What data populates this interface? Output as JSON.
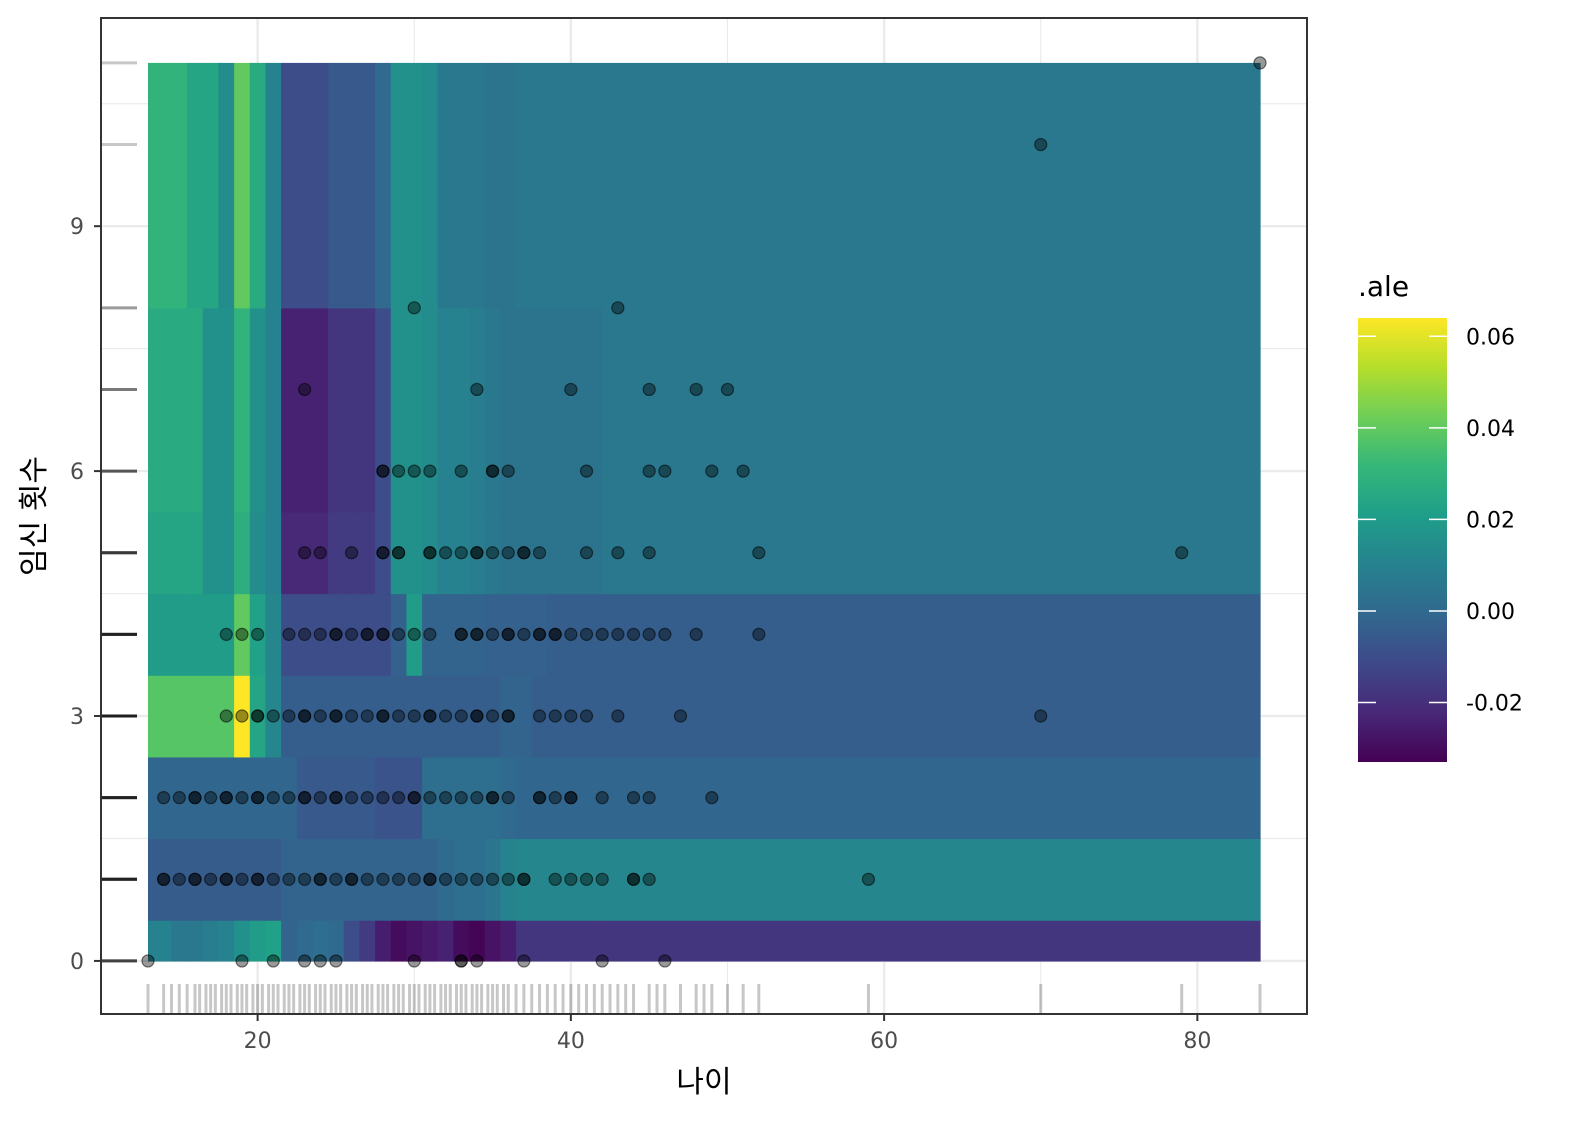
{
  "chart_data": {
    "type": "heatmap",
    "title": "",
    "xlabel": "나이",
    "ylabel": "임신 횟수",
    "xlim": [
      10,
      87
    ],
    "ylim": [
      -0.65,
      11.55
    ],
    "x_ticks": [
      20,
      40,
      60,
      80
    ],
    "x_tick_labels": [
      "20",
      "40",
      "60",
      "80"
    ],
    "y_ticks": [
      0,
      3,
      6,
      9
    ],
    "y_tick_labels": [
      "0",
      "3",
      "6",
      "9"
    ],
    "grid": true,
    "legend": {
      "title": ".ale",
      "position": "right",
      "colorscale": "viridis",
      "min": -0.033,
      "max": 0.064,
      "ticks": [
        0.06,
        0.04,
        0.02,
        0.0,
        -0.02
      ],
      "tick_labels": [
        "0.06",
        "0.04",
        "0.02",
        "0.00",
        "-0.02"
      ]
    },
    "x_edges": [
      13,
      14.5,
      15.5,
      16.5,
      17.5,
      18.5,
      19.5,
      20.5,
      21.5,
      22.5,
      23.5,
      24.5,
      25.5,
      26.5,
      27.5,
      28.5,
      29.5,
      30.5,
      31.5,
      32.5,
      33.5,
      34.5,
      35.5,
      36.5,
      37.5,
      38.5,
      42,
      64,
      84
    ],
    "y_edges": [
      0,
      0.5,
      1.5,
      2.5,
      3.5,
      4.5,
      5.5,
      8,
      11
    ],
    "ale_values": [
      [
        0.01,
        0.006,
        0.006,
        0.008,
        0.01,
        0.016,
        0.02,
        0.022,
        -0.002,
        0.0,
        0.002,
        0.0,
        -0.01,
        -0.016,
        -0.025,
        -0.03,
        -0.028,
        -0.026,
        -0.024,
        -0.03,
        -0.032,
        -0.028,
        -0.025,
        -0.018,
        -0.018,
        -0.018,
        -0.018,
        -0.018,
        -0.03
      ],
      [
        -0.005,
        -0.005,
        -0.005,
        -0.005,
        -0.005,
        -0.005,
        -0.005,
        -0.005,
        -0.002,
        -0.002,
        -0.002,
        -0.002,
        -0.002,
        -0.002,
        -0.002,
        -0.002,
        -0.002,
        -0.002,
        0.0,
        0.002,
        0.002,
        0.005,
        0.01,
        0.012,
        0.012,
        0.012,
        0.012,
        0.012,
        0.005
      ],
      [
        -0.001,
        -0.001,
        -0.001,
        -0.001,
        -0.001,
        -0.001,
        -0.001,
        -0.001,
        -0.001,
        -0.006,
        -0.006,
        -0.006,
        -0.006,
        -0.006,
        -0.008,
        -0.008,
        -0.008,
        0.002,
        0.002,
        0.002,
        0.002,
        0.002,
        0.0,
        -0.001,
        -0.001,
        -0.001,
        -0.001,
        -0.001,
        -0.001
      ],
      [
        0.038,
        0.038,
        0.038,
        0.038,
        0.038,
        0.064,
        0.024,
        0.012,
        -0.004,
        -0.004,
        -0.004,
        -0.004,
        -0.004,
        -0.004,
        -0.004,
        -0.004,
        -0.004,
        -0.004,
        -0.004,
        -0.004,
        -0.004,
        -0.004,
        -0.002,
        -0.002,
        -0.004,
        -0.004,
        -0.004,
        -0.004,
        0.008
      ],
      [
        0.02,
        0.02,
        0.02,
        0.02,
        0.02,
        0.04,
        0.022,
        0.012,
        -0.01,
        -0.01,
        -0.01,
        -0.01,
        -0.01,
        -0.01,
        -0.01,
        -0.003,
        0.02,
        -0.002,
        -0.002,
        -0.002,
        -0.002,
        -0.003,
        -0.003,
        -0.003,
        -0.003,
        -0.004,
        -0.004,
        -0.004,
        -0.004
      ],
      [
        0.024,
        0.024,
        0.024,
        0.016,
        0.016,
        0.028,
        0.014,
        0.01,
        -0.022,
        -0.022,
        -0.022,
        -0.016,
        -0.016,
        -0.016,
        -0.01,
        0.016,
        0.016,
        0.014,
        0.01,
        0.01,
        0.008,
        0.006,
        0.004,
        0.004,
        0.004,
        0.004,
        0.006,
        0.006,
        0.006
      ],
      [
        0.026,
        0.026,
        0.026,
        0.016,
        0.016,
        0.03,
        0.016,
        0.01,
        -0.024,
        -0.024,
        -0.024,
        -0.018,
        -0.018,
        -0.018,
        -0.01,
        0.016,
        0.016,
        0.014,
        0.01,
        0.01,
        0.008,
        0.006,
        0.004,
        0.004,
        0.004,
        0.004,
        0.006,
        0.006,
        0.01
      ],
      [
        0.03,
        0.03,
        0.024,
        0.024,
        0.014,
        0.04,
        0.026,
        0.01,
        -0.01,
        -0.01,
        -0.01,
        -0.006,
        -0.006,
        -0.006,
        0.0,
        0.016,
        0.016,
        0.014,
        0.006,
        0.006,
        0.006,
        0.004,
        0.004,
        0.006,
        0.006,
        0.006,
        0.006,
        0.006,
        -0.002
      ]
    ],
    "points": [
      [
        13,
        0
      ],
      [
        19,
        0
      ],
      [
        21,
        0
      ],
      [
        23,
        0
      ],
      [
        24,
        0
      ],
      [
        25,
        0
      ],
      [
        30,
        0
      ],
      [
        33,
        0
      ],
      [
        33,
        0
      ],
      [
        34,
        0
      ],
      [
        37,
        0
      ],
      [
        42,
        0
      ],
      [
        46,
        0
      ],
      [
        14,
        1
      ],
      [
        14,
        1
      ],
      [
        15,
        1
      ],
      [
        16,
        1
      ],
      [
        16,
        1
      ],
      [
        17,
        1
      ],
      [
        18,
        1
      ],
      [
        18,
        1
      ],
      [
        19,
        1
      ],
      [
        20,
        1
      ],
      [
        20,
        1
      ],
      [
        21,
        1
      ],
      [
        22,
        1
      ],
      [
        23,
        1
      ],
      [
        24,
        1
      ],
      [
        24,
        1
      ],
      [
        25,
        1
      ],
      [
        26,
        1
      ],
      [
        26,
        1
      ],
      [
        27,
        1
      ],
      [
        28,
        1
      ],
      [
        29,
        1
      ],
      [
        30,
        1
      ],
      [
        31,
        1
      ],
      [
        31,
        1
      ],
      [
        32,
        1
      ],
      [
        33,
        1
      ],
      [
        34,
        1
      ],
      [
        35,
        1
      ],
      [
        36,
        1
      ],
      [
        37,
        1
      ],
      [
        37,
        1
      ],
      [
        39,
        1
      ],
      [
        40,
        1
      ],
      [
        41,
        1
      ],
      [
        42,
        1
      ],
      [
        44,
        1
      ],
      [
        44,
        1
      ],
      [
        45,
        1
      ],
      [
        59,
        1
      ],
      [
        14,
        2
      ],
      [
        15,
        2
      ],
      [
        16,
        2
      ],
      [
        16,
        2
      ],
      [
        17,
        2
      ],
      [
        18,
        2
      ],
      [
        18,
        2
      ],
      [
        19,
        2
      ],
      [
        20,
        2
      ],
      [
        20,
        2
      ],
      [
        21,
        2
      ],
      [
        22,
        2
      ],
      [
        23,
        2
      ],
      [
        23,
        2
      ],
      [
        24,
        2
      ],
      [
        25,
        2
      ],
      [
        25,
        2
      ],
      [
        26,
        2
      ],
      [
        27,
        2
      ],
      [
        28,
        2
      ],
      [
        29,
        2
      ],
      [
        30,
        2
      ],
      [
        30,
        2
      ],
      [
        31,
        2
      ],
      [
        32,
        2
      ],
      [
        33,
        2
      ],
      [
        34,
        2
      ],
      [
        35,
        2
      ],
      [
        35,
        2
      ],
      [
        36,
        2
      ],
      [
        38,
        2
      ],
      [
        38,
        2
      ],
      [
        39,
        2
      ],
      [
        40,
        2
      ],
      [
        40,
        2
      ],
      [
        42,
        2
      ],
      [
        44,
        2
      ],
      [
        45,
        2
      ],
      [
        49,
        2
      ],
      [
        18,
        3
      ],
      [
        19,
        3
      ],
      [
        20,
        3
      ],
      [
        20,
        3
      ],
      [
        21,
        3
      ],
      [
        22,
        3
      ],
      [
        23,
        3
      ],
      [
        23,
        3
      ],
      [
        24,
        3
      ],
      [
        25,
        3
      ],
      [
        25,
        3
      ],
      [
        26,
        3
      ],
      [
        27,
        3
      ],
      [
        28,
        3
      ],
      [
        28,
        3
      ],
      [
        29,
        3
      ],
      [
        30,
        3
      ],
      [
        31,
        3
      ],
      [
        31,
        3
      ],
      [
        32,
        3
      ],
      [
        33,
        3
      ],
      [
        34,
        3
      ],
      [
        34,
        3
      ],
      [
        35,
        3
      ],
      [
        36,
        3
      ],
      [
        36,
        3
      ],
      [
        38,
        3
      ],
      [
        39,
        3
      ],
      [
        40,
        3
      ],
      [
        41,
        3
      ],
      [
        43,
        3
      ],
      [
        47,
        3
      ],
      [
        70,
        3
      ],
      [
        18,
        4
      ],
      [
        19,
        4
      ],
      [
        20,
        4
      ],
      [
        22,
        4
      ],
      [
        23,
        4
      ],
      [
        24,
        4
      ],
      [
        25,
        4
      ],
      [
        25,
        4
      ],
      [
        26,
        4
      ],
      [
        27,
        4
      ],
      [
        27,
        4
      ],
      [
        28,
        4
      ],
      [
        28,
        4
      ],
      [
        29,
        4
      ],
      [
        30,
        4
      ],
      [
        31,
        4
      ],
      [
        33,
        4
      ],
      [
        33,
        4
      ],
      [
        34,
        4
      ],
      [
        34,
        4
      ],
      [
        35,
        4
      ],
      [
        36,
        4
      ],
      [
        36,
        4
      ],
      [
        37,
        4
      ],
      [
        38,
        4
      ],
      [
        38,
        4
      ],
      [
        39,
        4
      ],
      [
        39,
        4
      ],
      [
        40,
        4
      ],
      [
        41,
        4
      ],
      [
        42,
        4
      ],
      [
        43,
        4
      ],
      [
        44,
        4
      ],
      [
        45,
        4
      ],
      [
        46,
        4
      ],
      [
        48,
        4
      ],
      [
        52,
        4
      ],
      [
        23,
        5
      ],
      [
        24,
        5
      ],
      [
        26,
        5
      ],
      [
        28,
        5
      ],
      [
        28,
        5
      ],
      [
        29,
        5
      ],
      [
        29,
        5
      ],
      [
        31,
        5
      ],
      [
        31,
        5
      ],
      [
        32,
        5
      ],
      [
        33,
        5
      ],
      [
        34,
        5
      ],
      [
        34,
        5
      ],
      [
        35,
        5
      ],
      [
        36,
        5
      ],
      [
        37,
        5
      ],
      [
        37,
        5
      ],
      [
        38,
        5
      ],
      [
        41,
        5
      ],
      [
        43,
        5
      ],
      [
        45,
        5
      ],
      [
        52,
        5
      ],
      [
        79,
        5
      ],
      [
        28,
        6
      ],
      [
        28,
        6
      ],
      [
        29,
        6
      ],
      [
        30,
        6
      ],
      [
        31,
        6
      ],
      [
        33,
        6
      ],
      [
        35,
        6
      ],
      [
        35,
        6
      ],
      [
        36,
        6
      ],
      [
        41,
        6
      ],
      [
        45,
        6
      ],
      [
        46,
        6
      ],
      [
        49,
        6
      ],
      [
        51,
        6
      ],
      [
        23,
        7
      ],
      [
        34,
        7
      ],
      [
        40,
        7
      ],
      [
        45,
        7
      ],
      [
        48,
        7
      ],
      [
        50,
        7
      ],
      [
        30,
        8
      ],
      [
        43,
        8
      ],
      [
        70,
        10
      ],
      [
        84,
        11
      ]
    ],
    "x_rug": [
      13,
      14,
      14.5,
      15,
      15.5,
      16,
      16.3,
      16.7,
      17,
      17.3,
      17.7,
      18,
      18.3,
      18.7,
      19,
      19.3,
      19.7,
      20,
      20.3,
      20.7,
      21,
      21.3,
      21.7,
      22,
      22.3,
      22.7,
      23,
      23.3,
      23.7,
      24,
      24.3,
      24.7,
      25,
      25.3,
      25.7,
      26,
      26.3,
      26.7,
      27,
      27.3,
      27.7,
      28,
      28.3,
      28.7,
      29,
      29.3,
      29.7,
      30,
      30.3,
      30.7,
      31,
      31.3,
      31.7,
      32,
      32.3,
      32.7,
      33,
      33.3,
      33.7,
      34,
      34.3,
      34.7,
      35,
      35.3,
      35.7,
      36,
      36.5,
      37,
      37.5,
      38,
      38.5,
      39,
      39.5,
      40,
      40.5,
      41,
      41.5,
      42,
      42.5,
      43,
      43.5,
      44,
      45,
      45.5,
      46,
      47,
      48,
      48.5,
      49,
      50,
      51,
      52,
      59,
      70,
      79,
      84
    ],
    "y_rug": [
      0,
      0,
      0,
      0,
      0,
      1,
      1,
      1,
      1,
      1,
      1,
      1,
      1,
      2,
      2,
      2,
      2,
      2,
      2,
      2,
      2,
      3,
      3,
      3,
      3,
      3,
      3,
      3,
      3,
      4,
      4,
      4,
      4,
      4,
      4,
      4,
      4,
      5,
      5,
      5,
      5,
      5,
      5,
      6,
      6,
      6,
      6,
      7,
      7,
      7,
      8,
      8,
      10,
      11
    ]
  }
}
